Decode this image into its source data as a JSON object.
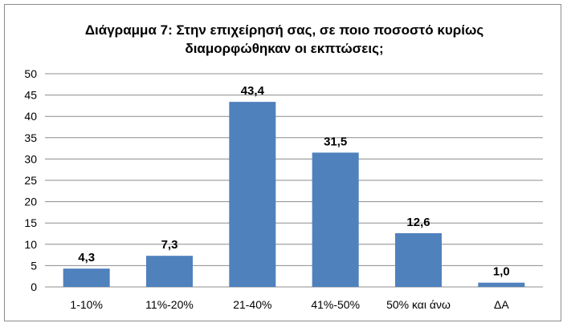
{
  "chart_data": {
    "type": "bar",
    "title_lines": [
      "Διάγραμμα 7: Στην επιχείρησή σας, σε ποιο ποσοστό κυρίως",
      "διαμορφώθηκαν οι εκπτώσεις;"
    ],
    "categories": [
      "1-10%",
      "11%-20%",
      "21-40%",
      "41%-50%",
      "50% και άνω",
      "ΔΑ"
    ],
    "values": [
      4.3,
      7.3,
      43.4,
      31.5,
      12.6,
      1.0
    ],
    "data_labels": [
      "4,3",
      "7,3",
      "43,4",
      "31,5",
      "12,6",
      "1,0"
    ],
    "yticks": [
      0,
      5,
      10,
      15,
      20,
      25,
      30,
      35,
      40,
      45,
      50
    ],
    "ylim": [
      0,
      50
    ],
    "grid": true,
    "legend": "none",
    "bar_color": "#4f81bd",
    "grid_color": "#8c8c8c"
  }
}
